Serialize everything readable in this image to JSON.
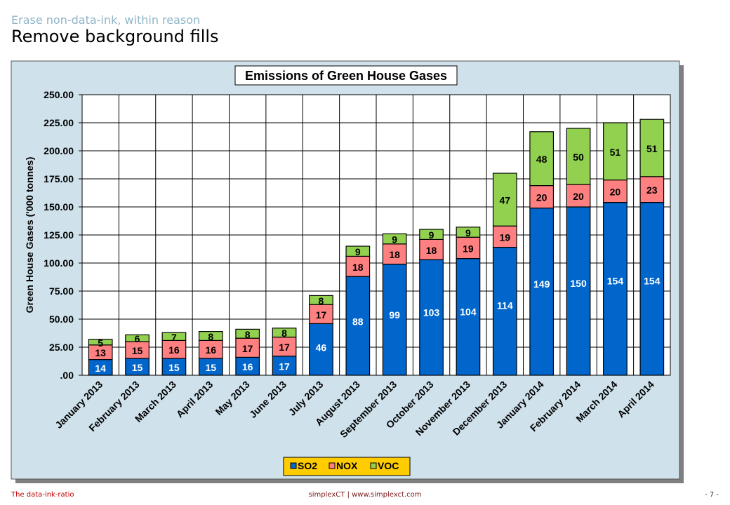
{
  "slide": {
    "supertitle": "Erase non-data-ink, within reason",
    "title": "Remove background fills",
    "footer_left": "The data-ink-ratio",
    "footer_center": "simplexCT  |  www.simplexct.com",
    "footer_right": "- 7 -"
  },
  "colors": {
    "panel_bg": "#cfe2ec",
    "SO2": "#0066cc",
    "NOX": "#ff8080",
    "VOC": "#92d050",
    "legend_bg": "#ffcc00"
  },
  "chart_data": {
    "type": "bar",
    "stacked": true,
    "title": "Emissions of Green House Gases",
    "ylabel": "Green House Gases ('000 tonnes)",
    "xlabel": "",
    "ylim": [
      0,
      250
    ],
    "yticks": [
      ".00",
      "25.00",
      "50.00",
      "75.00",
      "100.00",
      "125.00",
      "150.00",
      "175.00",
      "200.00",
      "225.00",
      "250.00"
    ],
    "grid": true,
    "legend_position": "bottom",
    "categories": [
      "January 2013",
      "February 2013",
      "March 2013",
      "April 2013",
      "May 2013",
      "June 2013",
      "July 2013",
      "August 2013",
      "September 2013",
      "October 2013",
      "November 2013",
      "December 2013",
      "January 2014",
      "February 2014",
      "March 2014",
      "April 2014"
    ],
    "series": [
      {
        "name": "SO2",
        "values": [
          14,
          15,
          15,
          15,
          16,
          17,
          46,
          88,
          99,
          103,
          104,
          114,
          149,
          150,
          154,
          154
        ]
      },
      {
        "name": "NOX",
        "values": [
          13,
          15,
          16,
          16,
          17,
          17,
          17,
          18,
          18,
          18,
          19,
          19,
          20,
          20,
          20,
          23
        ]
      },
      {
        "name": "VOC",
        "values": [
          5,
          6,
          7,
          8,
          8,
          8,
          8,
          9,
          9,
          9,
          9,
          47,
          48,
          50,
          51,
          51
        ]
      }
    ]
  }
}
